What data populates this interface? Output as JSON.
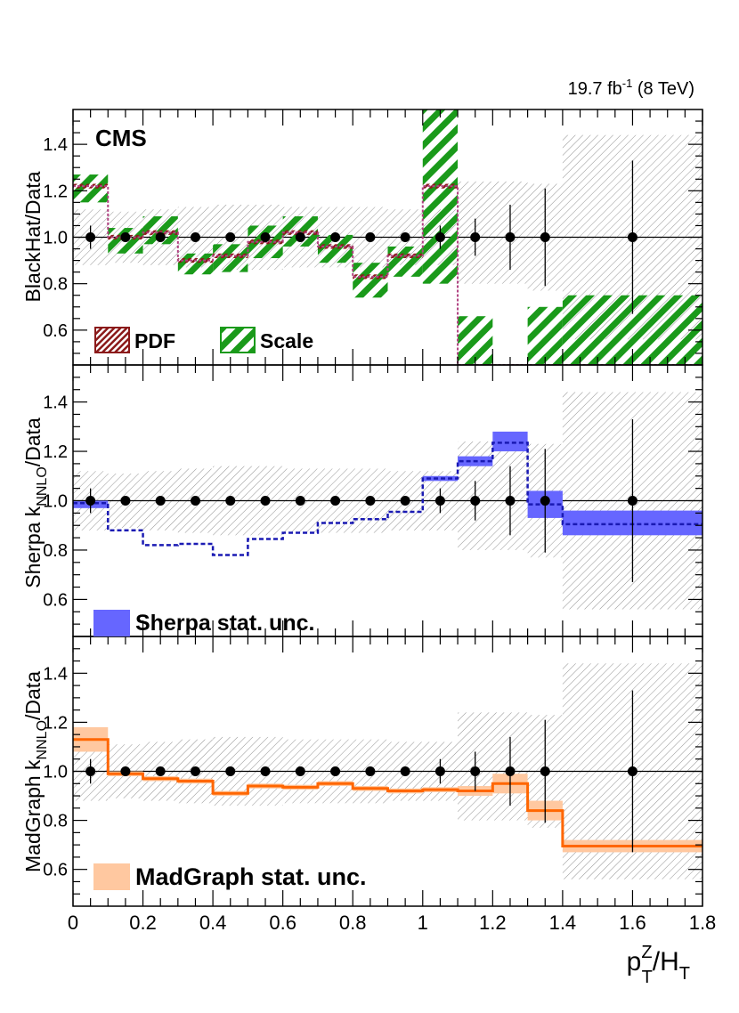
{
  "header": {
    "lumi_value": "19.7 fb",
    "lumi_exp": "-1",
    "lumi_energy": "(8 TeV)"
  },
  "experiment_label": "CMS",
  "x_axis": {
    "range": [
      0,
      1.8
    ],
    "ticks": [
      "0",
      "0.2",
      "0.4",
      "0.6",
      "0.8",
      "1",
      "1.2",
      "1.4",
      "1.6",
      "1.8"
    ],
    "label_main": "p",
    "label_sup": "Z",
    "label_sub": "T",
    "label_mid": "/H",
    "label_sub2": "T"
  },
  "colors": {
    "pdf": "#8b1a1a",
    "scale": "#1a9a1a",
    "sherpa": "#6666ff",
    "sherpa_line": "#1a1ab3",
    "madgraph_band": "#ffc8a0",
    "madgraph_line": "#ff6600",
    "data": "#000000",
    "syst": "#666666"
  },
  "chart_data": [
    {
      "type": "step",
      "name": "blackhat",
      "ylabel": "BlackHat/Data",
      "ylim": [
        0.45,
        1.55
      ],
      "yticks": [
        "0.6",
        "0.8",
        "1.0",
        "1.2",
        "1.4"
      ],
      "bin_edges": [
        0,
        0.1,
        0.2,
        0.3,
        0.4,
        0.5,
        0.6,
        0.7,
        0.8,
        0.9,
        1.0,
        1.1,
        1.2,
        1.3,
        1.4,
        1.8
      ],
      "prediction": [
        1.22,
        1.0,
        1.02,
        0.9,
        0.92,
        0.98,
        1.02,
        0.96,
        0.83,
        0.92,
        1.22,
        0.45,
        0.45,
        0.45,
        0.45
      ],
      "scale_low": [
        1.15,
        0.93,
        0.97,
        0.84,
        0.85,
        0.91,
        0.96,
        0.89,
        0.74,
        0.83,
        0.8,
        0.45,
        0.45,
        0.45,
        0.45
      ],
      "scale_high": [
        1.27,
        1.04,
        1.09,
        0.93,
        0.97,
        1.05,
        1.09,
        1.01,
        0.89,
        0.96,
        1.55,
        0.66,
        0.45,
        0.7,
        0.75
      ],
      "pdf_low": [
        1.21,
        0.99,
        1.01,
        0.89,
        0.91,
        0.97,
        1.01,
        0.95,
        0.82,
        0.91,
        1.21,
        0.45,
        0.45,
        0.45,
        0.45
      ],
      "pdf_high": [
        1.23,
        1.01,
        1.03,
        0.91,
        0.93,
        0.99,
        1.03,
        0.97,
        0.84,
        0.93,
        1.23,
        0.45,
        0.45,
        0.45,
        0.45
      ],
      "legend": [
        "PDF",
        "Scale"
      ]
    },
    {
      "type": "step",
      "name": "sherpa",
      "ylabel_main": "Sherpa k",
      "ylabel_sub": "NNLO",
      "ylabel_tail": "/Data",
      "ylim": [
        0.45,
        1.55
      ],
      "yticks": [
        "0.6",
        "0.8",
        "1.0",
        "1.2",
        "1.4"
      ],
      "bin_edges": [
        0,
        0.1,
        0.2,
        0.3,
        0.4,
        0.5,
        0.6,
        0.7,
        0.8,
        0.9,
        1.0,
        1.1,
        1.2,
        1.3,
        1.4,
        1.8
      ],
      "prediction": [
        0.99,
        0.88,
        0.82,
        0.825,
        0.78,
        0.845,
        0.87,
        0.91,
        0.925,
        0.955,
        1.09,
        1.16,
        1.235,
        0.985,
        0.905
      ],
      "stat_low": [
        0.97,
        0.88,
        0.82,
        0.825,
        0.78,
        0.845,
        0.87,
        0.91,
        0.925,
        0.955,
        1.08,
        1.14,
        1.2,
        0.93,
        0.86
      ],
      "stat_high": [
        1.0,
        0.88,
        0.82,
        0.825,
        0.78,
        0.845,
        0.87,
        0.91,
        0.925,
        0.955,
        1.1,
        1.18,
        1.28,
        1.04,
        0.96
      ],
      "legend": [
        "Sherpa stat. unc."
      ]
    },
    {
      "type": "step",
      "name": "madgraph",
      "ylabel_main": "MadGraph k",
      "ylabel_sub": "NNLO",
      "ylabel_tail": "/Data",
      "ylim": [
        0.45,
        1.55
      ],
      "yticks": [
        "0.6",
        "0.8",
        "1.0",
        "1.2",
        "1.4"
      ],
      "bin_edges": [
        0,
        0.1,
        0.2,
        0.3,
        0.4,
        0.5,
        0.6,
        0.7,
        0.8,
        0.9,
        1.0,
        1.1,
        1.2,
        1.3,
        1.4,
        1.8
      ],
      "prediction": [
        1.13,
        0.99,
        0.97,
        0.96,
        0.91,
        0.94,
        0.935,
        0.95,
        0.93,
        0.92,
        0.925,
        0.92,
        0.95,
        0.84,
        0.695
      ],
      "stat_low": [
        1.08,
        0.98,
        0.96,
        0.95,
        0.9,
        0.93,
        0.925,
        0.94,
        0.92,
        0.91,
        0.915,
        0.9,
        0.91,
        0.8,
        0.67
      ],
      "stat_high": [
        1.18,
        1.0,
        0.98,
        0.97,
        0.92,
        0.95,
        0.945,
        0.96,
        0.94,
        0.93,
        0.935,
        0.94,
        0.99,
        0.88,
        0.72
      ],
      "legend": [
        "MadGraph stat. unc."
      ]
    }
  ],
  "data_points": {
    "x": [
      0.05,
      0.15,
      0.25,
      0.35,
      0.45,
      0.55,
      0.65,
      0.75,
      0.85,
      0.95,
      1.05,
      1.15,
      1.25,
      1.35,
      1.6
    ],
    "y": [
      1,
      1,
      1,
      1,
      1,
      1,
      1,
      1,
      1,
      1,
      1,
      1,
      1,
      1,
      1
    ],
    "err": [
      0.05,
      0.01,
      0.01,
      0.01,
      0.01,
      0.01,
      0.01,
      0.01,
      0.01,
      0.01,
      0.05,
      0.08,
      0.14,
      0.21,
      0.33
    ],
    "syst_low": [
      0.88,
      0.89,
      0.88,
      0.87,
      0.86,
      0.86,
      0.87,
      0.87,
      0.87,
      0.88,
      0.88,
      0.8,
      0.8,
      0.77,
      0.56
    ],
    "syst_high": [
      1.12,
      1.11,
      1.12,
      1.13,
      1.14,
      1.14,
      1.13,
      1.13,
      1.13,
      1.12,
      1.12,
      1.24,
      1.24,
      1.23,
      1.44
    ]
  }
}
